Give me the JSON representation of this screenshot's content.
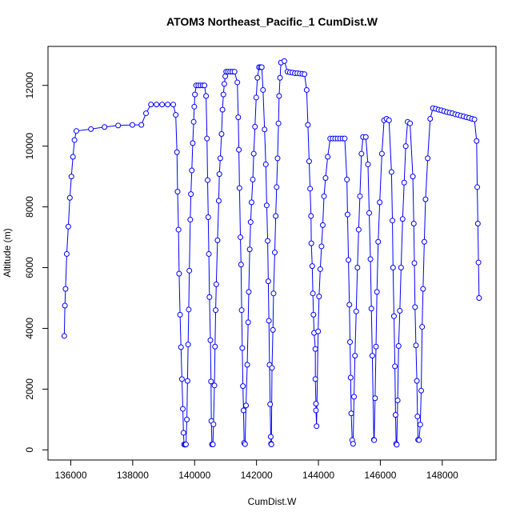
{
  "chart_data": {
    "type": "line",
    "title": "ATOM3 Northeast_Pacific_1 CumDist.W",
    "x_label": "CumDist.W",
    "y_label": "Altitude (m)",
    "marker": "circle",
    "x": [
      135790,
      135810,
      135830,
      135870,
      135920,
      135970,
      136020,
      136070,
      136120,
      136180,
      136650,
      137090,
      137530,
      137990,
      138280,
      138430,
      138590,
      138770,
      138950,
      139130,
      139310,
      139390,
      139430,
      139450,
      139480,
      139500,
      139530,
      139560,
      139590,
      139620,
      139640,
      139660,
      139690,
      139720,
      139750,
      139770,
      139790,
      139810,
      139830,
      139860,
      139880,
      139910,
      139940,
      139970,
      139990,
      140010,
      140050,
      140120,
      140190,
      140260,
      140320,
      140370,
      140400,
      140420,
      140440,
      140460,
      140480,
      140510,
      140530,
      140540,
      140560,
      140590,
      140610,
      140640,
      140660,
      140680,
      140700,
      140740,
      140780,
      140800,
      140830,
      140870,
      140900,
      140930,
      140960,
      140990,
      141020,
      141080,
      141150,
      141220,
      141290,
      141380,
      141410,
      141430,
      141450,
      141480,
      141500,
      141520,
      141540,
      141560,
      141580,
      141600,
      141630,
      141660,
      141700,
      141730,
      141750,
      141780,
      141810,
      141840,
      141880,
      141910,
      141950,
      141990,
      142030,
      142080,
      142130,
      142170,
      142210,
      142260,
      142300,
      142330,
      142360,
      142380,
      142400,
      142420,
      142440,
      142460,
      142470,
      142480,
      142500,
      142530,
      142550,
      142590,
      142620,
      142650,
      142680,
      142710,
      142730,
      142760,
      142790,
      142900,
      143000,
      143080,
      143160,
      143240,
      143320,
      143400,
      143480,
      143550,
      143620,
      143660,
      143700,
      143730,
      143760,
      143770,
      143800,
      143820,
      143840,
      143860,
      143900,
      143900,
      143920,
      143920,
      143940,
      143990,
      144020,
      144060,
      144100,
      144140,
      144180,
      144230,
      144300,
      144380,
      144460,
      144540,
      144620,
      144700,
      144780,
      144850,
      144920,
      144940,
      144970,
      145000,
      145020,
      145040,
      145060,
      145090,
      145120,
      145150,
      145180,
      145220,
      145260,
      145300,
      145340,
      145390,
      145440,
      145530,
      145600,
      145640,
      145680,
      145710,
      145740,
      145790,
      145800,
      145830,
      145860,
      145890,
      145930,
      145980,
      146050,
      146120,
      146200,
      146280,
      146360,
      146390,
      146410,
      146440,
      146470,
      146490,
      146510,
      146530,
      146560,
      146590,
      146630,
      146670,
      146720,
      146770,
      146820,
      146880,
      146960,
      147050,
      147080,
      147100,
      147120,
      147150,
      147180,
      147200,
      147220,
      147250,
      147290,
      147320,
      147350,
      147380,
      147420,
      147460,
      147530,
      147610,
      147700,
      147790,
      147880,
      147970,
      148060,
      148150,
      148240,
      148330,
      148420,
      148510,
      148600,
      148690,
      148780,
      148870,
      148960,
      149040,
      149110,
      149130,
      149150,
      149170,
      149190
    ],
    "series": [
      {
        "color": "#0000ff",
        "values": [
          3750,
          4750,
          5300,
          6450,
          7350,
          8300,
          9000,
          9650,
          10200,
          10500,
          10560,
          10630,
          10680,
          10700,
          10700,
          11080,
          11370,
          11370,
          11370,
          11370,
          11370,
          11030,
          9800,
          8500,
          7250,
          5800,
          4450,
          3380,
          2330,
          1350,
          560,
          180,
          170,
          180,
          1000,
          2270,
          3470,
          4620,
          5900,
          7580,
          8420,
          9200,
          10100,
          10800,
          11300,
          11700,
          12000,
          12000,
          12000,
          12000,
          12000,
          11650,
          10250,
          8880,
          7660,
          6450,
          5030,
          3610,
          2250,
          950,
          180,
          180,
          840,
          2120,
          3400,
          4600,
          5450,
          6900,
          8200,
          9080,
          9600,
          10400,
          11200,
          11700,
          12050,
          12300,
          12450,
          12450,
          12450,
          12450,
          12450,
          12100,
          10950,
          9880,
          8620,
          7000,
          6100,
          4600,
          3350,
          2100,
          1300,
          230,
          190,
          1460,
          2800,
          4200,
          5200,
          6600,
          7500,
          8150,
          8900,
          9750,
          10640,
          11600,
          12250,
          12600,
          12600,
          12600,
          11850,
          10550,
          9400,
          8050,
          6880,
          5550,
          4250,
          2800,
          1500,
          430,
          200,
          180,
          2700,
          3950,
          5150,
          6500,
          7700,
          8650,
          9600,
          10750,
          11650,
          12250,
          12750,
          12800,
          12450,
          12430,
          12420,
          12400,
          12400,
          12390,
          12380,
          12370,
          11850,
          10700,
          9500,
          8600,
          7700,
          6800,
          6050,
          5150,
          4450,
          3850,
          3320,
          2330,
          1520,
          1300,
          780,
          3900,
          5050,
          5950,
          6700,
          7400,
          8350,
          8950,
          9650,
          10250,
          10250,
          10250,
          10250,
          10250,
          10250,
          10250,
          8900,
          7750,
          6250,
          4780,
          3550,
          2380,
          1200,
          320,
          200,
          1750,
          3100,
          4560,
          6000,
          7250,
          8350,
          9750,
          10300,
          10300,
          9400,
          7800,
          6280,
          4650,
          3100,
          330,
          320,
          1700,
          3400,
          5200,
          6850,
          8150,
          9750,
          10850,
          10900,
          10850,
          9150,
          7550,
          6000,
          4400,
          2750,
          1150,
          200,
          170,
          1630,
          3420,
          4580,
          6000,
          7600,
          8800,
          10000,
          10800,
          10750,
          9000,
          7450,
          6150,
          4700,
          3440,
          2270,
          1100,
          330,
          320,
          830,
          1950,
          4050,
          5300,
          6850,
          8250,
          9600,
          10900,
          11250,
          11230,
          11200,
          11180,
          11150,
          11120,
          11100,
          11080,
          11050,
          11030,
          11000,
          10980,
          10950,
          10930,
          10900,
          10880,
          10170,
          8650,
          7450,
          6170,
          5000
        ]
      }
    ],
    "xlim": [
      135264,
      149736
    ],
    "ylim": [
      -334,
      13284
    ],
    "xticks": [
      136000,
      138000,
      140000,
      142000,
      144000,
      146000,
      148000
    ],
    "yticks": [
      0,
      2000,
      4000,
      6000,
      8000,
      10000,
      12000
    ]
  }
}
